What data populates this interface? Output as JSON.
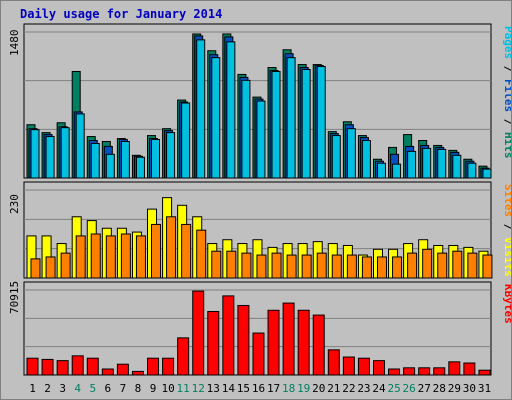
{
  "chart_data": {
    "type": "bar",
    "title": "Daily usage for January 2014",
    "categories": [
      "1",
      "2",
      "3",
      "4",
      "5",
      "6",
      "7",
      "8",
      "9",
      "10",
      "11",
      "12",
      "13",
      "14",
      "15",
      "16",
      "17",
      "18",
      "19",
      "20",
      "21",
      "22",
      "23",
      "24",
      "25",
      "26",
      "27",
      "28",
      "29",
      "30",
      "31"
    ],
    "weekend_days": [
      "4",
      "5",
      "11",
      "12",
      "18",
      "19",
      "25",
      "26"
    ],
    "panels": [
      {
        "id": "top",
        "ymax_label": "1480",
        "ymax": 1480,
        "right_labels": [
          {
            "text": "Pages",
            "color": "#00c0e0"
          },
          {
            "text": " / ",
            "color": "#000000"
          },
          {
            "text": "Files",
            "color": "#0050c0"
          },
          {
            "text": " / ",
            "color": "#000000"
          },
          {
            "text": "Hits",
            "color": "#008060"
          }
        ],
        "series": [
          {
            "name": "Hits",
            "color": "#008060",
            "values": [
              540,
              460,
              560,
              1080,
              420,
              370,
              400,
              230,
              430,
              500,
              790,
              1460,
              1290,
              1460,
              1050,
              820,
              1120,
              1300,
              1150,
              1150,
              470,
              570,
              430,
              190,
              310,
              440,
              380,
              330,
              280,
              190,
              120
            ]
          },
          {
            "name": "Files",
            "color": "#0050c0",
            "values": [
              500,
              440,
              520,
              670,
              380,
              320,
              390,
              220,
              400,
              480,
              770,
              1440,
              1250,
              1430,
              1020,
              800,
              1090,
              1260,
              1120,
              1140,
              450,
              540,
              410,
              170,
              240,
              320,
              330,
              310,
              260,
              170,
              100
            ]
          },
          {
            "name": "Pages",
            "color": "#00c0e0",
            "values": [
              490,
              420,
              510,
              650,
              350,
              240,
              370,
              210,
              390,
              460,
              760,
              1400,
              1220,
              1380,
              990,
              780,
              1080,
              1220,
              1100,
              1130,
              430,
              500,
              380,
              150,
              140,
              270,
              300,
              290,
              230,
              150,
              90
            ]
          }
        ]
      },
      {
        "id": "mid",
        "ymax_label": "230",
        "ymax": 230,
        "right_labels": [
          {
            "text": "Sites",
            "color": "#ff8000"
          },
          {
            "text": " / ",
            "color": "#000000"
          },
          {
            "text": "Visits",
            "color": "#ffff00"
          }
        ],
        "series": [
          {
            "name": "Visits",
            "color": "#ffff00",
            "values": [
              110,
              110,
              90,
              160,
              150,
              130,
              130,
              120,
              180,
              210,
              190,
              160,
              90,
              100,
              90,
              100,
              80,
              90,
              90,
              95,
              90,
              85,
              60,
              75,
              75,
              90,
              100,
              85,
              85,
              80,
              70
            ]
          },
          {
            "name": "Sites",
            "color": "#ff8000",
            "values": [
              50,
              55,
              65,
              110,
              115,
              110,
              115,
              110,
              140,
              160,
              140,
              125,
              70,
              70,
              65,
              60,
              65,
              60,
              60,
              65,
              60,
              60,
              55,
              55,
              55,
              65,
              75,
              65,
              70,
              65,
              60
            ]
          }
        ]
      },
      {
        "id": "bot",
        "ymax_label": "70915",
        "ymax": 70915,
        "right_labels": [
          {
            "text": "KBytes",
            "color": "#ff0000"
          }
        ],
        "series": [
          {
            "name": "KBytes",
            "color": "#ff0000",
            "values": [
              14000,
              13000,
              12000,
              16000,
              14000,
              5000,
              9000,
              3000,
              14000,
              14000,
              31000,
              70000,
              53000,
              66000,
              58000,
              35000,
              54000,
              60000,
              54000,
              50000,
              21000,
              15000,
              14000,
              12000,
              5000,
              6000,
              6000,
              6000,
              11000,
              10000,
              4000
            ]
          }
        ]
      }
    ]
  }
}
